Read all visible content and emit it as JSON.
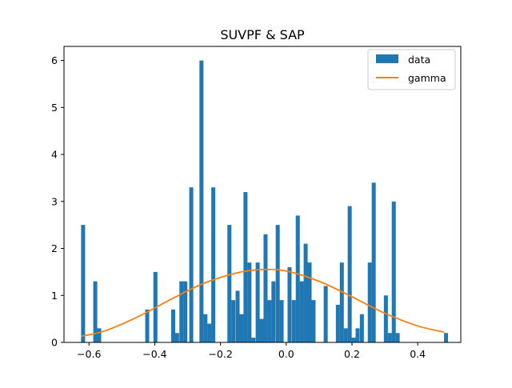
{
  "chart_data": {
    "type": "bar",
    "title": "SUVPF & SAP",
    "xlabel": "",
    "ylabel": "",
    "xlim": [
      -0.676,
      0.531
    ],
    "ylim": [
      0,
      6.3
    ],
    "x_ticks": [
      "-0.6",
      "-0.4",
      "-0.2",
      "0.0",
      "0.2",
      "0.4"
    ],
    "x_tick_values": [
      -0.6,
      -0.4,
      -0.2,
      0.0,
      0.2,
      0.4
    ],
    "y_ticks": [
      "0",
      "1",
      "2",
      "3",
      "4",
      "5",
      "6"
    ],
    "y_tick_values": [
      0,
      1,
      2,
      3,
      4,
      5,
      6
    ],
    "legend": {
      "placement": "top-right",
      "entries": [
        "data",
        "gamma"
      ]
    },
    "grid": false,
    "bin_width": 0.0122,
    "series": [
      {
        "name": "data",
        "kind": "histogram",
        "color": "#1f77b4",
        "bins": [
          {
            "x": -0.624,
            "height": 2.5
          },
          {
            "x": -0.587,
            "height": 1.3
          },
          {
            "x": -0.575,
            "height": 0.3
          },
          {
            "x": -0.429,
            "height": 0.7
          },
          {
            "x": -0.404,
            "height": 1.5
          },
          {
            "x": -0.35,
            "height": 0.7
          },
          {
            "x": -0.338,
            "height": 0.2
          },
          {
            "x": -0.325,
            "height": 1.3
          },
          {
            "x": -0.313,
            "height": 1.3
          },
          {
            "x": -0.295,
            "height": 3.3
          },
          {
            "x": -0.264,
            "height": 6.0
          },
          {
            "x": -0.252,
            "height": 0.6
          },
          {
            "x": -0.24,
            "height": 0.4
          },
          {
            "x": -0.228,
            "height": 3.3
          },
          {
            "x": -0.179,
            "height": 2.5
          },
          {
            "x": -0.167,
            "height": 0.9
          },
          {
            "x": -0.154,
            "height": 1.1
          },
          {
            "x": -0.142,
            "height": 0.6
          },
          {
            "x": -0.13,
            "height": 3.2
          },
          {
            "x": -0.118,
            "height": 1.7
          },
          {
            "x": -0.106,
            "height": 0.1
          },
          {
            "x": -0.093,
            "height": 1.7
          },
          {
            "x": -0.081,
            "height": 0.5
          },
          {
            "x": -0.069,
            "height": 2.3
          },
          {
            "x": -0.057,
            "height": 0.9
          },
          {
            "x": -0.045,
            "height": 1.3
          },
          {
            "x": -0.032,
            "height": 2.5
          },
          {
            "x": -0.02,
            "height": 0.9
          },
          {
            "x": 0.004,
            "height": 1.6
          },
          {
            "x": 0.017,
            "height": 0.9
          },
          {
            "x": 0.029,
            "height": 2.7
          },
          {
            "x": 0.041,
            "height": 1.3
          },
          {
            "x": 0.053,
            "height": 2.1
          },
          {
            "x": 0.065,
            "height": 1.7
          },
          {
            "x": 0.077,
            "height": 0.9
          },
          {
            "x": 0.114,
            "height": 1.2
          },
          {
            "x": 0.151,
            "height": 0.8
          },
          {
            "x": 0.163,
            "height": 1.7
          },
          {
            "x": 0.175,
            "height": 0.3
          },
          {
            "x": 0.187,
            "height": 2.9
          },
          {
            "x": 0.199,
            "height": 0.1
          },
          {
            "x": 0.211,
            "height": 0.3
          },
          {
            "x": 0.224,
            "height": 0.6
          },
          {
            "x": 0.248,
            "height": 1.7
          },
          {
            "x": 0.26,
            "height": 3.4
          },
          {
            "x": 0.297,
            "height": 1.0
          },
          {
            "x": 0.309,
            "height": 0.2
          },
          {
            "x": 0.321,
            "height": 3.0
          },
          {
            "x": 0.333,
            "height": 0.2
          },
          {
            "x": 0.48,
            "height": 0.2
          }
        ]
      },
      {
        "name": "gamma",
        "kind": "line",
        "color": "#ff7f0e",
        "x": [
          -0.624,
          -0.55,
          -0.45,
          -0.35,
          -0.25,
          -0.15,
          -0.075,
          0.0,
          0.1,
          0.2,
          0.3,
          0.4,
          0.48
        ],
        "y": [
          0.13,
          0.25,
          0.55,
          0.92,
          1.26,
          1.48,
          1.55,
          1.52,
          1.3,
          0.97,
          0.62,
          0.35,
          0.22
        ]
      }
    ]
  }
}
